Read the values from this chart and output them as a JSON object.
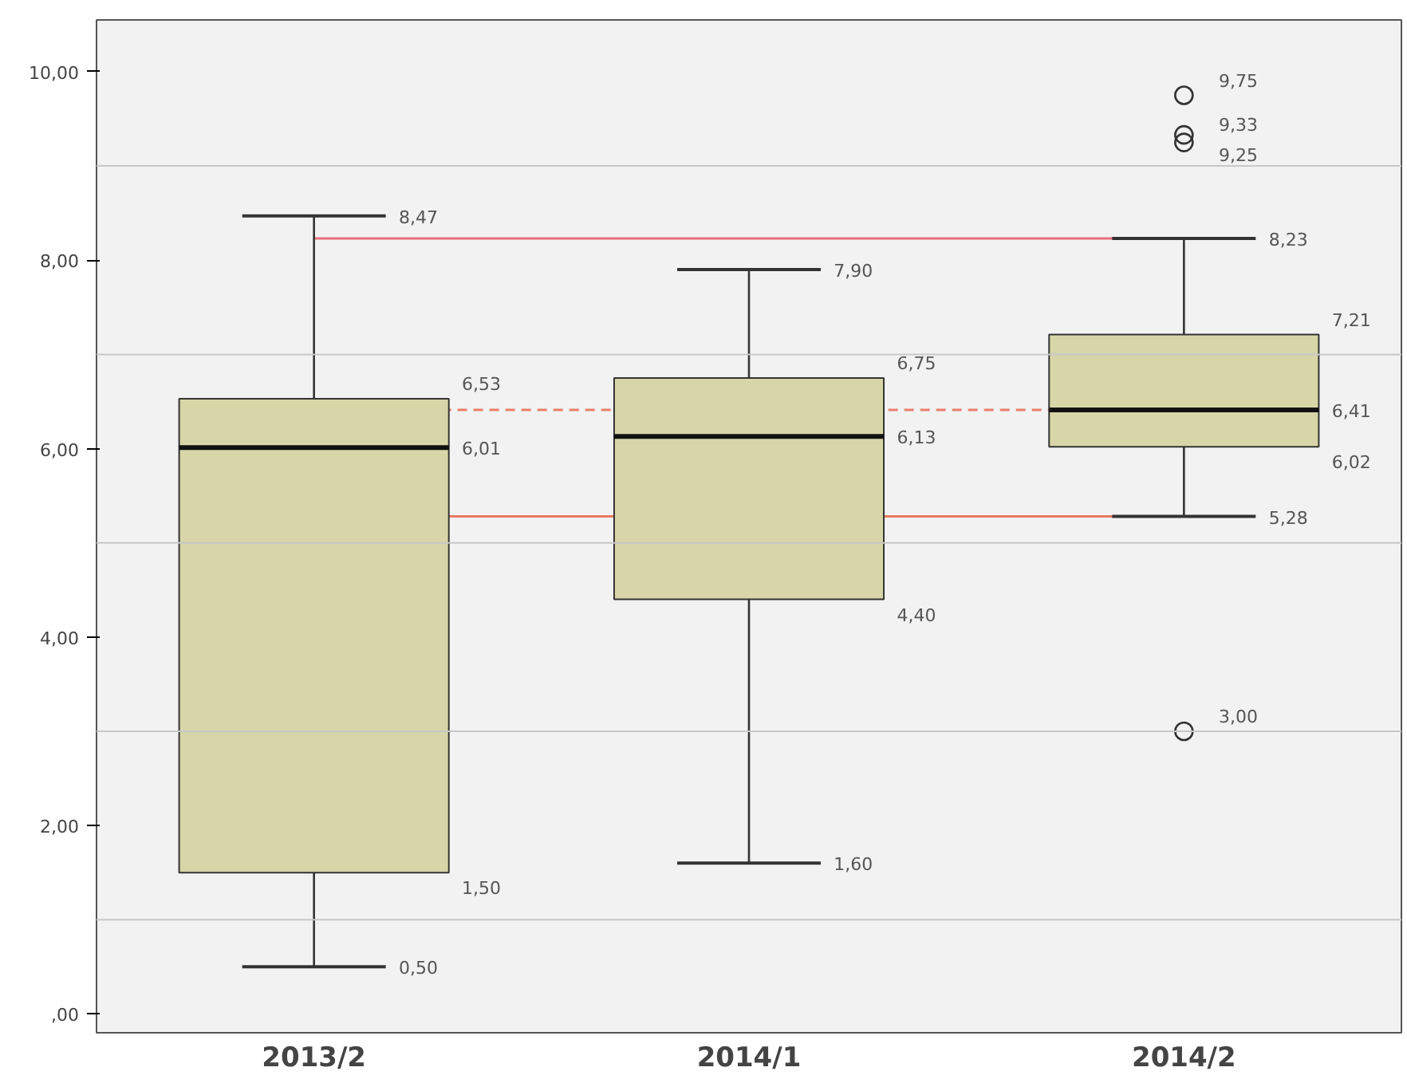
{
  "chart_data": {
    "type": "box",
    "categories": [
      "2013/2",
      "2014/1",
      "2014/2"
    ],
    "color": "#d8d5a8",
    "boxes": [
      {
        "low": 0.5,
        "q1": 1.5,
        "median": 6.01,
        "q3": 6.53,
        "high": 8.47
      },
      {
        "low": 1.6,
        "q1": 4.4,
        "median": 6.13,
        "q3": 6.75,
        "high": 7.9
      },
      {
        "low": 5.28,
        "q1": 6.02,
        "median": 6.41,
        "q3": 7.21,
        "high": 8.23,
        "outliers": [
          9.75,
          9.33,
          9.25,
          3.0
        ]
      }
    ],
    "annotations": [
      "0,50",
      "1,50",
      "6,01",
      "6,53",
      "8,47",
      "1,60",
      "4,40",
      "6,13",
      "6,75",
      "7,90",
      "5,28",
      "6,02",
      "6,41",
      "7,21",
      "8,23",
      "9,75",
      "9,33",
      "9,25",
      "3,00"
    ],
    "ylim": [
      -0.2,
      10.55
    ],
    "yticks": [
      {
        "value": 0,
        "label": ",00"
      },
      {
        "value": 2,
        "label": "2,00"
      },
      {
        "value": 4,
        "label": "4,00"
      },
      {
        "value": 6,
        "label": "6,00"
      },
      {
        "value": 8,
        "label": "8,00"
      },
      {
        "value": 10,
        "label": "10,00"
      }
    ],
    "ref_lines": [
      {
        "axis": "y",
        "value": 1,
        "color": "#c8c8c8"
      },
      {
        "axis": "y",
        "value": 3,
        "color": "#c8c8c8"
      },
      {
        "axis": "y",
        "value": 5,
        "color": "#c8c8c8"
      },
      {
        "axis": "y",
        "value": 7,
        "color": "#c8c8c8"
      },
      {
        "axis": "y",
        "value": 9,
        "color": "#c8c8c8"
      },
      {
        "axis": "y",
        "value": 8.23,
        "color": "#e8707a",
        "line_style": "solid"
      },
      {
        "axis": "y",
        "value": 6.41,
        "color": "#e8806a",
        "line_style": "dashed"
      },
      {
        "axis": "y",
        "value": 5.28,
        "color": "#e87a60",
        "line_style": "solid"
      }
    ]
  }
}
